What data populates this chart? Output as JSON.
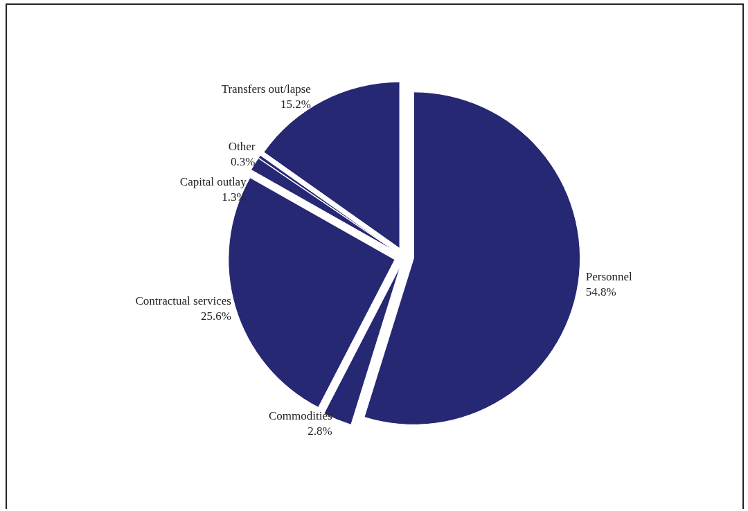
{
  "chart_data": {
    "type": "pie",
    "categories": [
      "Personnel",
      "Commodities",
      "Contractual services",
      "Capital outlay",
      "Other",
      "Transfers out/lapse"
    ],
    "values": [
      54.8,
      2.8,
      25.6,
      1.3,
      0.3,
      15.2
    ],
    "colors": [
      "#272873",
      "#272873",
      "#272873",
      "#272873",
      "#272873",
      "#272873"
    ],
    "value_labels": [
      "54.8%",
      "2.8%",
      "25.6%",
      "1.3%",
      "0.3%",
      "15.2%"
    ],
    "legend": false
  }
}
